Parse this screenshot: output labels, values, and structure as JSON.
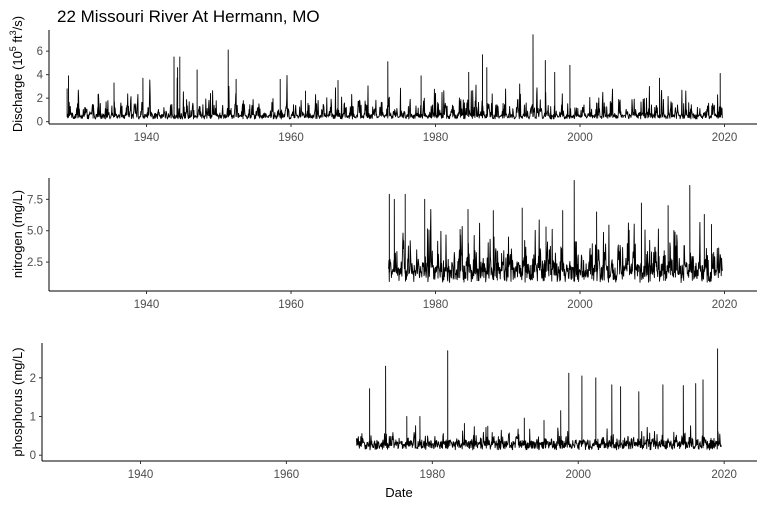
{
  "title_prefix": "22 Missouri River At Hermann, MO",
  "xlabel": "Date",
  "chart_data": [
    {
      "type": "line",
      "panel": "discharge",
      "ylabel": "Discharge (10^5 ft^3/s)",
      "ylim": [
        -0.2,
        7.8
      ],
      "yticks": [
        0,
        2,
        4,
        6
      ],
      "ytick_labels": [
        "0",
        "2",
        "4",
        "6"
      ],
      "xlim": [
        1926.5,
        2024.5
      ],
      "xticks": [
        1940,
        1960,
        1980,
        2000,
        2020
      ],
      "xtick_labels": [
        "1940",
        "1960",
        "1980",
        "2000",
        "2020"
      ],
      "data_range": [
        1929.0,
        2019.7
      ],
      "baseline": 0.4,
      "typical_peak": 2.0,
      "max_value": 7.4,
      "series": [
        {
          "x": [
            1929.0,
            1929.2,
            1933.3,
            1935.5,
            1939.5,
            1943.8,
            1944.3,
            1944.6,
            1947.0,
            1951.3,
            1952.4,
            1958.5,
            1962.0,
            1966.5,
            1973.4,
            1978.0,
            1984.6,
            1986.5,
            1987.1,
            1993.5,
            1995.2,
            1996.5,
            1998.6,
            2011.0,
            2019.4
          ],
          "y": [
            2.8,
            3.9,
            2.3,
            3.3,
            3.7,
            5.5,
            4.6,
            5.5,
            4.4,
            6.1,
            3.6,
            3.6,
            2.6,
            3.5,
            5.1,
            3.9,
            4.2,
            5.7,
            4.6,
            7.4,
            5.2,
            4.2,
            4.8,
            3.7,
            4.1
          ]
        }
      ]
    },
    {
      "type": "line",
      "panel": "nitrogen",
      "ylabel": "nitrogen (mg/L)",
      "ylim": [
        0.2,
        9.2
      ],
      "yticks": [
        2.5,
        5.0,
        7.5
      ],
      "ytick_labels": [
        "2.5",
        "5.0",
        "7.5"
      ],
      "xlim": [
        1926.5,
        2024.5
      ],
      "xticks": [
        1940,
        1960,
        1980,
        2000,
        2020
      ],
      "xtick_labels": [
        "1940",
        "1960",
        "1980",
        "2000",
        "2020"
      ],
      "data_range": [
        1973.5,
        2019.7
      ],
      "baseline": 1.6,
      "typical_peak": 4.2,
      "max_value": 9.0,
      "series": [
        {
          "x": [
            1973.6,
            1974.3,
            1975.8,
            1978.5,
            1983.4,
            1984.5,
            1988.0,
            1989.6,
            1992.0,
            1995.3,
            1997.6,
            1999.2,
            2002.3,
            2008.5,
            2012.2,
            2015.2,
            2017.2,
            2018.2
          ],
          "y": [
            7.9,
            7.5,
            7.9,
            7.5,
            5.1,
            6.7,
            6.6,
            1.7,
            6.8,
            5.3,
            6.6,
            9.0,
            6.5,
            7.2,
            7.0,
            8.6,
            6.3,
            5.5
          ]
        }
      ]
    },
    {
      "type": "line",
      "panel": "phosphorus",
      "ylabel": "phosphorus (mg/L)",
      "ylim": [
        -0.15,
        2.9
      ],
      "yticks": [
        0,
        1,
        2
      ],
      "ytick_labels": [
        "0",
        "1",
        "2"
      ],
      "xlim": [
        1926.5,
        2024.5
      ],
      "xticks": [
        1940,
        1960,
        1980,
        2000,
        2020
      ],
      "xtick_labels": [
        "1940",
        "1960",
        "1980",
        "2000",
        "2020"
      ],
      "data_range": [
        1969.6,
        2019.6
      ],
      "baseline": 0.25,
      "typical_peak": 0.5,
      "max_value": 2.75,
      "series": [
        {
          "x": [
            1971.4,
            1973.6,
            1976.5,
            1978.3,
            1982.1,
            1984.4,
            1987.6,
            1992.6,
            1995.3,
            1997.6,
            1998.7,
            2000.5,
            2002.4,
            2004.6,
            2005.8,
            2008.3,
            2011.6,
            2014.4,
            2016.1,
            2017.1,
            2019.1
          ],
          "y": [
            1.72,
            2.3,
            1.0,
            1.0,
            2.7,
            0.82,
            0.75,
            0.96,
            0.9,
            1.15,
            2.12,
            2.05,
            2.0,
            1.82,
            1.77,
            1.64,
            1.82,
            1.8,
            1.85,
            1.95,
            2.75
          ]
        }
      ]
    }
  ]
}
